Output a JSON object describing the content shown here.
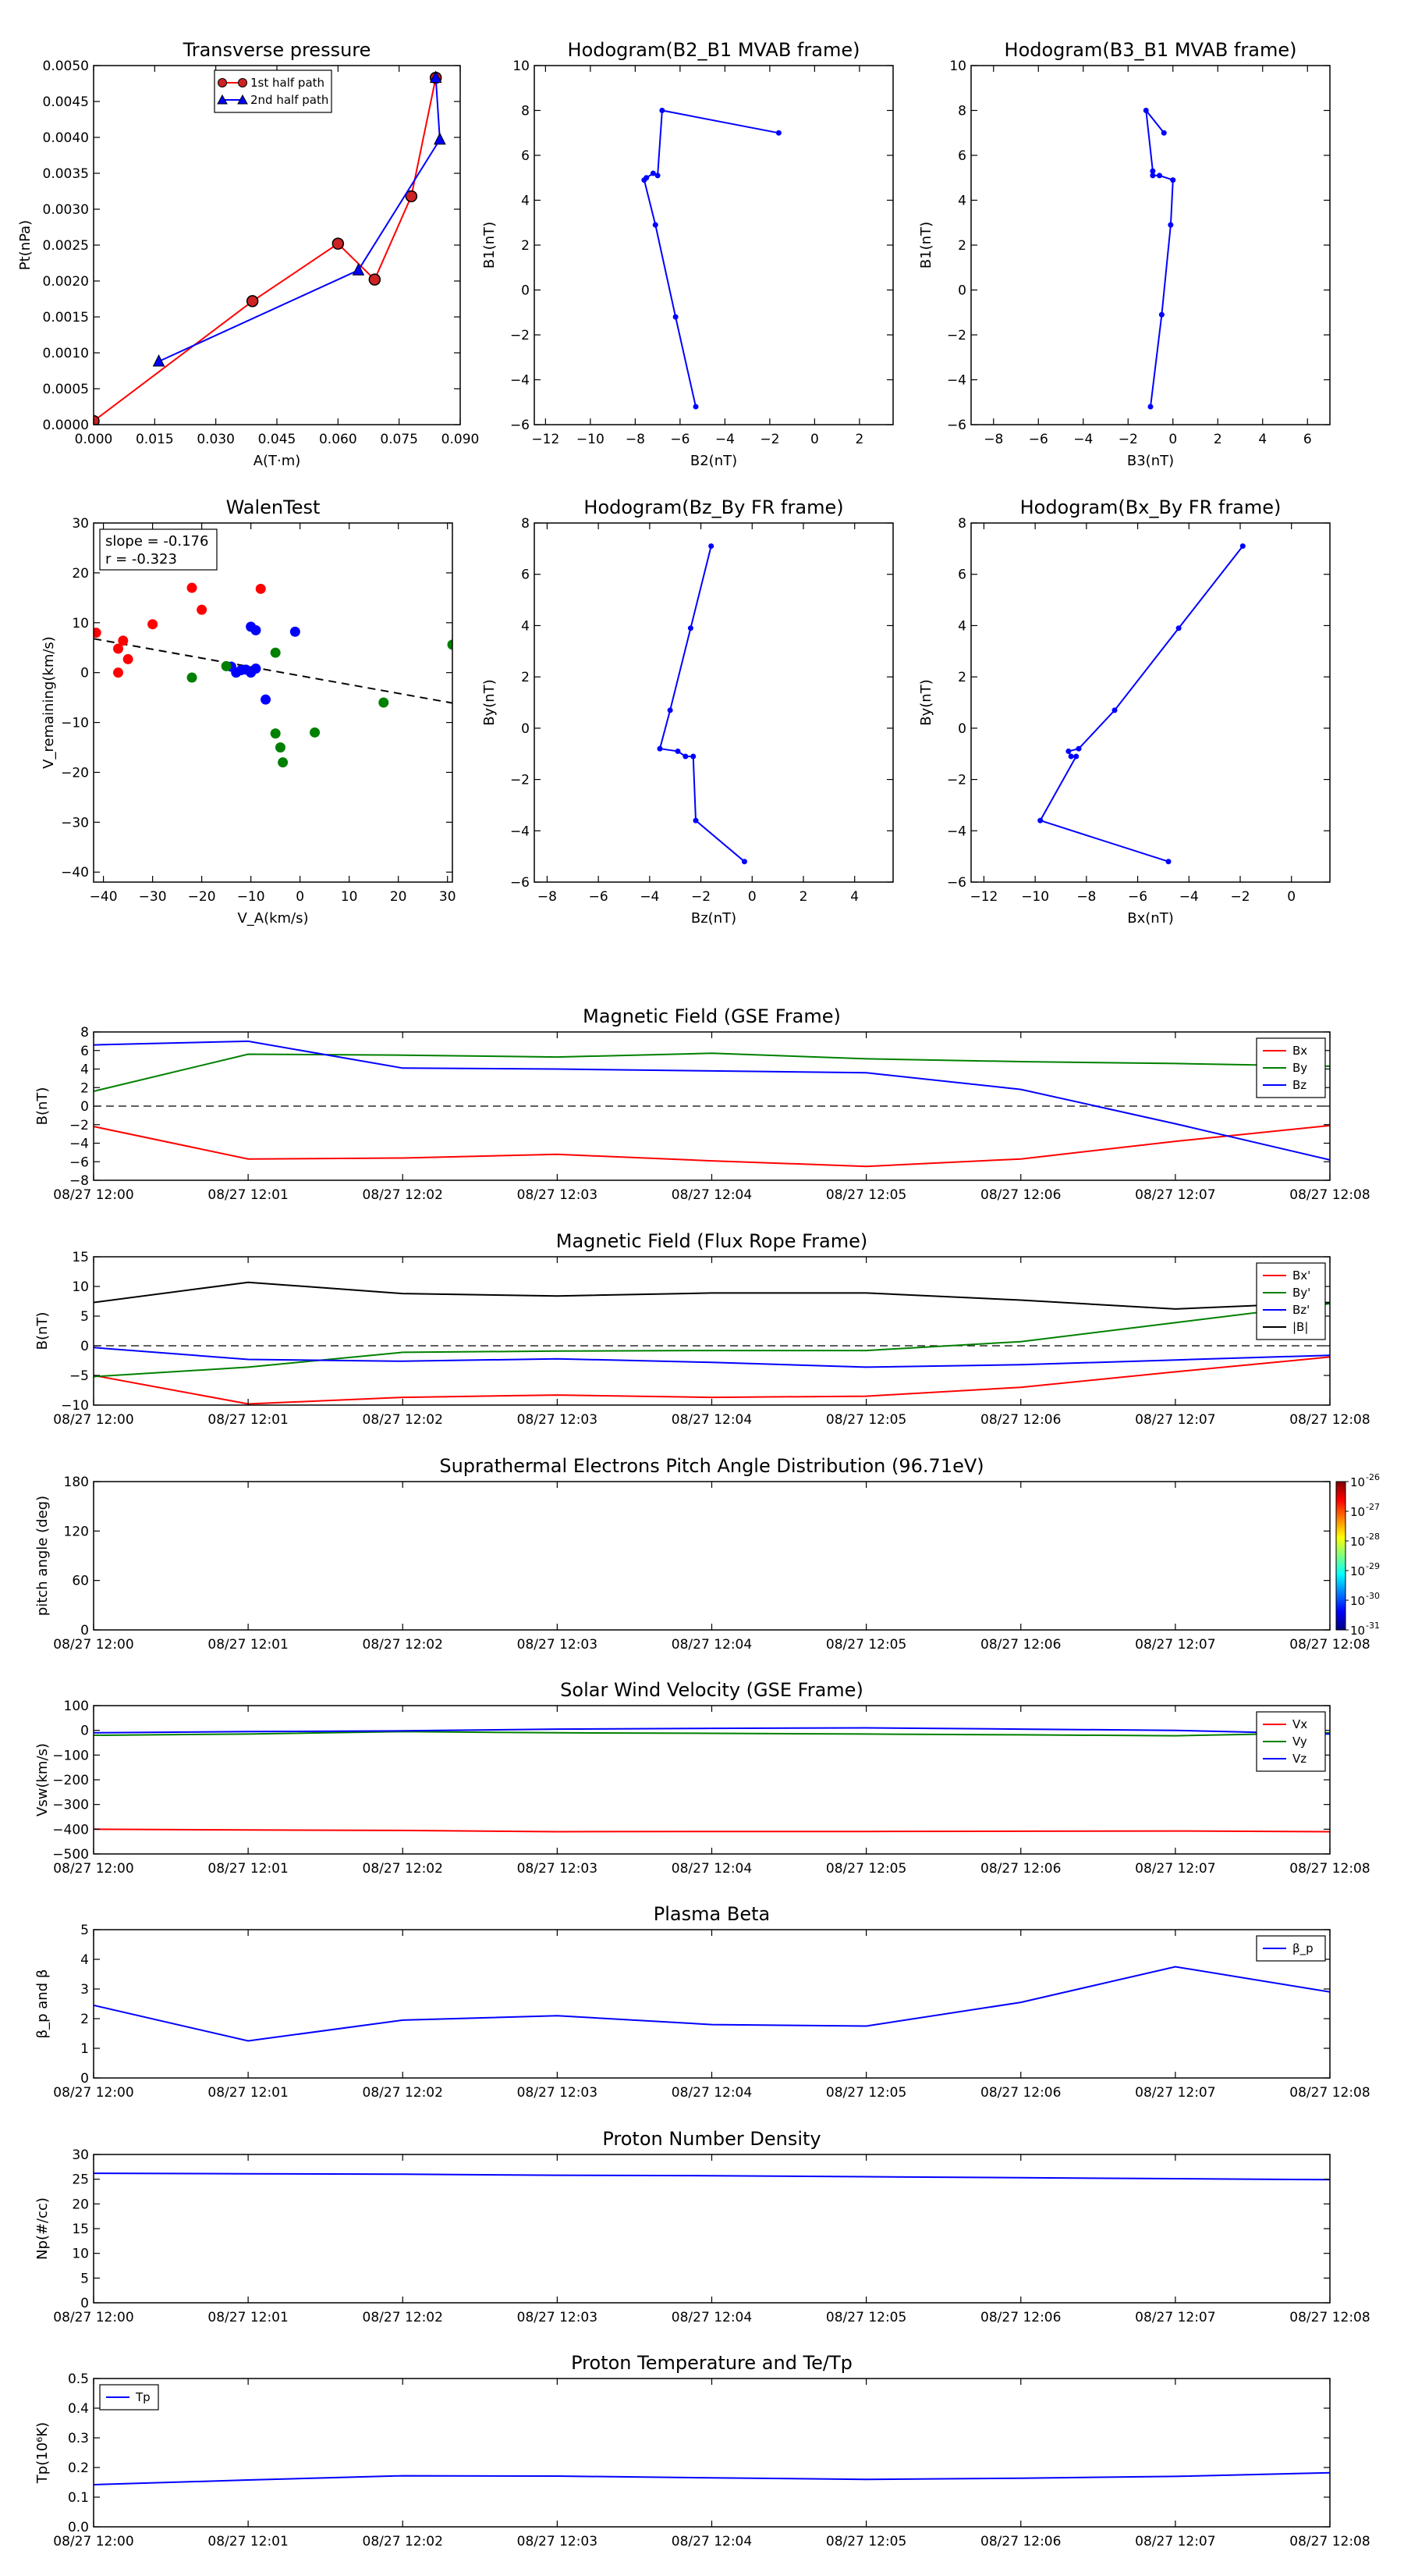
{
  "colors": {
    "red": "#ff0000",
    "green": "#008000",
    "blue": "#0000ff",
    "black": "#000000",
    "dark_red": "#990000"
  },
  "charts": [
    {
      "id": "transverse-pressure",
      "type": "line",
      "title": "Transverse pressure",
      "xlabel": "A(T·m)",
      "ylabel": "Pt(nPa)",
      "xlim": [
        0,
        0.09
      ],
      "ylim": [
        0,
        0.005
      ],
      "xticks": [
        0,
        0.015,
        0.03,
        0.045,
        0.06,
        0.075,
        0.09
      ],
      "xtick_labels": [
        "0.000",
        "0.015",
        "0.030",
        "0.045",
        "0.060",
        "0.075",
        "0.090"
      ],
      "yticks": [
        0,
        0.0005,
        0.001,
        0.0015,
        0.002,
        0.0025,
        0.003,
        0.0035,
        0.004,
        0.0045,
        0.005
      ],
      "ytick_labels": [
        "0.0000",
        "0.0005",
        "0.0010",
        "0.0015",
        "0.0020",
        "0.0025",
        "0.0030",
        "0.0035",
        "0.0040",
        "0.0045",
        "0.0050"
      ],
      "legend_position": "top-center",
      "series": [
        {
          "name": "1st half path",
          "color": "#ff0000",
          "marker": "circle",
          "x": [
            0.0,
            0.039,
            0.06,
            0.069,
            0.078,
            0.084
          ],
          "y": [
            5e-05,
            0.00172,
            0.00252,
            0.00202,
            0.00318,
            0.00483
          ]
        },
        {
          "name": "2nd half path",
          "color": "#0000ff",
          "marker": "triangle",
          "x": [
            0.084,
            0.085,
            0.065,
            0.016
          ],
          "y": [
            0.00483,
            0.00397,
            0.00215,
            0.00088
          ]
        }
      ]
    },
    {
      "id": "hodogram-b2-b1",
      "type": "line",
      "title": "Hodogram(B2_B1 MVAB frame)",
      "xlabel": "B2(nT)",
      "ylabel": "B1(nT)",
      "xlim": [
        -12.5,
        3.5
      ],
      "ylim": [
        -6,
        10
      ],
      "xticks": [
        -12,
        -10,
        -8,
        -6,
        -4,
        -2,
        0,
        2
      ],
      "xtick_labels": [
        "−12",
        "−10",
        "−8",
        "−6",
        "−4",
        "−2",
        "0",
        "2"
      ],
      "yticks": [
        -6,
        -4,
        -2,
        0,
        2,
        4,
        6,
        8,
        10
      ],
      "ytick_labels": [
        "−6",
        "−4",
        "−2",
        "0",
        "2",
        "4",
        "6",
        "8",
        "10"
      ],
      "series": [
        {
          "color": "#0000ff",
          "marker": "dot",
          "x": [
            -1.6,
            -6.8,
            -7.0,
            -7.2,
            -7.5,
            -7.6,
            -7.1,
            -6.2,
            -5.3
          ],
          "y": [
            7.0,
            8.0,
            5.1,
            5.2,
            5.0,
            4.9,
            2.9,
            -1.2,
            -5.2
          ]
        }
      ]
    },
    {
      "id": "hodogram-b3-b1",
      "type": "line",
      "title": "Hodogram(B3_B1 MVAB frame)",
      "xlabel": "B3(nT)",
      "ylabel": "B1(nT)",
      "xlim": [
        -9,
        7
      ],
      "ylim": [
        -6,
        10
      ],
      "xticks": [
        -8,
        -6,
        -4,
        -2,
        0,
        2,
        4,
        6
      ],
      "xtick_labels": [
        "−8",
        "−6",
        "−4",
        "−2",
        "0",
        "2",
        "4",
        "6"
      ],
      "yticks": [
        -6,
        -4,
        -2,
        0,
        2,
        4,
        6,
        8,
        10
      ],
      "ytick_labels": [
        "−6",
        "−4",
        "−2",
        "0",
        "2",
        "4",
        "6",
        "8",
        "10"
      ],
      "series": [
        {
          "color": "#0000ff",
          "marker": "dot",
          "x": [
            -0.4,
            -1.2,
            -0.9,
            -0.9,
            -0.6,
            0.0,
            -0.1,
            -0.5,
            -1.0
          ],
          "y": [
            7.0,
            8.0,
            5.3,
            5.1,
            5.1,
            4.9,
            2.9,
            -1.1,
            -5.2
          ]
        }
      ]
    },
    {
      "id": "walen-test",
      "type": "scatter",
      "title": "WalenTest",
      "xlabel": "V_A(km/s)",
      "ylabel": "V_remaining(km/s)",
      "xlim": [
        -42,
        31
      ],
      "ylim": [
        -42,
        30
      ],
      "xticks": [
        -40,
        -30,
        -20,
        -10,
        0,
        10,
        20,
        30
      ],
      "xtick_labels": [
        "−40",
        "−30",
        "−20",
        "−10",
        "0",
        "10",
        "20",
        "30"
      ],
      "yticks": [
        -40,
        -30,
        -20,
        -10,
        0,
        10,
        20,
        30
      ],
      "ytick_labels": [
        "−40",
        "−30",
        "−20",
        "−10",
        "0",
        "10",
        "20",
        "30"
      ],
      "annotation": {
        "slope": "slope = -0.176",
        "r": "r = -0.323"
      },
      "fit_line": {
        "x": [
          -42,
          31
        ],
        "y": [
          6.8,
          -6.1
        ]
      },
      "series": [
        {
          "color": "#ff0000",
          "x": [
            -41.5,
            -37,
            -36,
            -37,
            -35,
            -30,
            -22,
            -20,
            -8
          ],
          "y": [
            8,
            4.8,
            6.4,
            0,
            2.7,
            9.7,
            17,
            12.6,
            16.8
          ]
        },
        {
          "color": "#0000ff",
          "x": [
            -14,
            -13,
            -12,
            -11,
            -10,
            -9,
            -9,
            -10,
            -7,
            -1
          ],
          "y": [
            1.2,
            0,
            0.5,
            0.6,
            9.2,
            8.5,
            0.8,
            0,
            -5.4,
            8.2
          ]
        },
        {
          "color": "#008000",
          "x": [
            -22,
            -15,
            -5,
            -5,
            -4,
            -3.5,
            3,
            17,
            31
          ],
          "y": [
            -1,
            1.3,
            4,
            -12.2,
            -15,
            -18,
            -12,
            -6,
            5.6
          ]
        }
      ]
    },
    {
      "id": "hodogram-bz-by",
      "type": "line",
      "title": "Hodogram(Bz_By FR frame)",
      "xlabel": "Bz(nT)",
      "ylabel": "By(nT)",
      "xlim": [
        -8.5,
        5.5
      ],
      "ylim": [
        -6,
        8
      ],
      "xticks": [
        -8,
        -6,
        -4,
        -2,
        0,
        2,
        4
      ],
      "xtick_labels": [
        "−8",
        "−6",
        "−4",
        "−2",
        "0",
        "2",
        "4"
      ],
      "yticks": [
        -6,
        -4,
        -2,
        0,
        2,
        4,
        6,
        8
      ],
      "ytick_labels": [
        "−6",
        "−4",
        "−2",
        "0",
        "2",
        "4",
        "6",
        "8"
      ],
      "series": [
        {
          "color": "#0000ff",
          "marker": "dot",
          "x": [
            -1.6,
            -2.4,
            -3.2,
            -3.6,
            -2.9,
            -2.6,
            -2.3,
            -2.2,
            -0.3
          ],
          "y": [
            7.1,
            3.9,
            0.7,
            -0.8,
            -0.9,
            -1.1,
            -1.1,
            -3.6,
            -5.2
          ]
        }
      ]
    },
    {
      "id": "hodogram-bx-by",
      "type": "line",
      "title": "Hodogram(Bx_By FR frame)",
      "xlabel": "Bx(nT)",
      "ylabel": "By(nT)",
      "xlim": [
        -12.5,
        1.5
      ],
      "ylim": [
        -6,
        8
      ],
      "xticks": [
        -12,
        -10,
        -8,
        -6,
        -4,
        -2,
        0
      ],
      "xtick_labels": [
        "−12",
        "−10",
        "−8",
        "−6",
        "−4",
        "−2",
        "0"
      ],
      "yticks": [
        -6,
        -4,
        -2,
        0,
        2,
        4,
        6,
        8
      ],
      "ytick_labels": [
        "−6",
        "−4",
        "−2",
        "0",
        "2",
        "4",
        "6",
        "8"
      ],
      "series": [
        {
          "color": "#0000ff",
          "marker": "dot",
          "x": [
            -1.9,
            -4.4,
            -6.9,
            -8.3,
            -8.7,
            -8.6,
            -8.4,
            -9.8,
            -4.8
          ],
          "y": [
            7.1,
            3.9,
            0.7,
            -0.8,
            -0.9,
            -1.1,
            -1.1,
            -3.6,
            -5.2
          ]
        }
      ]
    },
    {
      "id": "magnetic-field-gse",
      "type": "line",
      "title": "Magnetic Field (GSE Frame)",
      "xlabel": "",
      "ylabel": "B(nT)",
      "ylim": [
        -8,
        8
      ],
      "yticks": [
        -8,
        -6,
        -4,
        -2,
        0,
        2,
        4,
        6,
        8
      ],
      "ytick_labels": [
        "−8",
        "−6",
        "−4",
        "−2",
        "0",
        "2",
        "4",
        "6",
        "8"
      ],
      "zero_line": true,
      "legend_position": "top-right",
      "series": [
        {
          "name": "Bx",
          "color": "#ff0000",
          "values": [
            -2.2,
            -5.7,
            -5.6,
            -5.2,
            -5.9,
            -6.5,
            -5.7,
            -3.8,
            -2.1
          ]
        },
        {
          "name": "By",
          "color": "#008000",
          "values": [
            1.6,
            5.6,
            5.5,
            5.3,
            5.7,
            5.1,
            4.8,
            4.6,
            4.3
          ]
        },
        {
          "name": "Bz",
          "color": "#0000ff",
          "values": [
            6.6,
            7.0,
            4.1,
            4.0,
            3.8,
            3.6,
            1.8,
            -1.9,
            -5.8
          ]
        }
      ]
    },
    {
      "id": "magnetic-field-flux-rope",
      "type": "line",
      "title": "Magnetic Field (Flux Rope Frame)",
      "xlabel": "",
      "ylabel": "B(nT)",
      "ylim": [
        -10,
        15
      ],
      "yticks": [
        -10,
        -5,
        0,
        5,
        10,
        15
      ],
      "ytick_labels": [
        "−10",
        "−5",
        "0",
        "5",
        "10",
        "15"
      ],
      "zero_line": true,
      "legend_position": "top-right",
      "series": [
        {
          "name": "Bx'",
          "color": "#ff0000",
          "values": [
            -5.0,
            -9.8,
            -8.7,
            -8.3,
            -8.7,
            -8.5,
            -7.0,
            -4.4,
            -1.9
          ]
        },
        {
          "name": "By'",
          "color": "#008000",
          "values": [
            -5.2,
            -3.6,
            -1.1,
            -0.9,
            -0.8,
            -0.8,
            0.7,
            3.9,
            7.1
          ]
        },
        {
          "name": "Bz'",
          "color": "#0000ff",
          "values": [
            -0.3,
            -2.3,
            -2.6,
            -2.2,
            -2.8,
            -3.6,
            -3.2,
            -2.4,
            -1.6
          ]
        },
        {
          "name": "|B|",
          "color": "#000000",
          "values": [
            7.3,
            10.7,
            8.8,
            8.4,
            8.9,
            8.9,
            7.7,
            6.2,
            7.3
          ]
        }
      ]
    },
    {
      "id": "pitch-angle-distribution",
      "type": "heatmap",
      "title": "Suprathermal Electrons Pitch Angle Distribution (96.71eV)",
      "xlabel": "",
      "ylabel": "pitch angle (deg)",
      "ylim": [
        0,
        180
      ],
      "yticks": [
        0,
        60,
        120,
        180
      ],
      "ytick_labels": [
        "0",
        "60",
        "120",
        "180"
      ],
      "colorbar": {
        "labels": [
          "10",
          "10",
          "10",
          "10",
          "10",
          "10"
        ],
        "exponents": [
          "-26",
          "-27",
          "-28",
          "-29",
          "-30",
          "-31"
        ],
        "stops": [
          "#800000",
          "#ff0000",
          "#ff8000",
          "#ffff00",
          "#80ff80",
          "#00ffff",
          "#0080ff",
          "#0000ff",
          "#000080"
        ]
      }
    },
    {
      "id": "solar-wind-velocity",
      "type": "line",
      "title": "Solar Wind Velocity (GSE Frame)",
      "xlabel": "",
      "ylabel": "Vsw(km/s)",
      "ylim": [
        -500,
        100
      ],
      "yticks": [
        -500,
        -400,
        -300,
        -200,
        -100,
        0,
        100
      ],
      "ytick_labels": [
        "−500",
        "−400",
        "−300",
        "−200",
        "−100",
        "0",
        "100"
      ],
      "legend_position": "top-right",
      "series": [
        {
          "name": "Vx",
          "color": "#ff0000",
          "values": [
            -400,
            -403,
            -405,
            -410,
            -409,
            -409,
            -408,
            -407,
            -410
          ]
        },
        {
          "name": "Vy",
          "color": "#008000",
          "values": [
            -20,
            -15,
            -5,
            -10,
            -12,
            -15,
            -18,
            -22,
            -10
          ]
        },
        {
          "name": "Vz",
          "color": "#0000ff",
          "values": [
            -10,
            -5,
            -2,
            5,
            8,
            10,
            5,
            0,
            -15
          ]
        }
      ]
    },
    {
      "id": "plasma-beta",
      "type": "line",
      "title": "Plasma Beta",
      "xlabel": "",
      "ylabel": "β_p and β",
      "ylim": [
        0,
        5
      ],
      "yticks": [
        0,
        1,
        2,
        3,
        4,
        5
      ],
      "ytick_labels": [
        "0",
        "1",
        "2",
        "3",
        "4",
        "5"
      ],
      "legend_position": "top-right",
      "series": [
        {
          "name": "β_p",
          "color": "#0000ff",
          "values": [
            2.45,
            1.25,
            1.95,
            2.1,
            1.8,
            1.75,
            2.55,
            3.75,
            2.9
          ]
        }
      ]
    },
    {
      "id": "proton-number-density",
      "type": "line",
      "title": "Proton Number Density",
      "xlabel": "",
      "ylabel": "Np(#/cc)",
      "ylim": [
        0,
        30
      ],
      "yticks": [
        0,
        5,
        10,
        15,
        20,
        25,
        30
      ],
      "ytick_labels": [
        "0",
        "5",
        "10",
        "15",
        "20",
        "25",
        "30"
      ],
      "series": [
        {
          "color": "#0000ff",
          "values": [
            26.2,
            26.1,
            26.0,
            25.8,
            25.7,
            25.5,
            25.3,
            25.1,
            24.9
          ]
        }
      ]
    },
    {
      "id": "proton-temperature",
      "type": "line",
      "title": "Proton Temperature and Te/Tp",
      "xlabel": "",
      "ylabel": "Tp(10⁶K)",
      "ylim": [
        0,
        0.5
      ],
      "yticks": [
        0,
        0.1,
        0.2,
        0.3,
        0.4,
        0.5
      ],
      "ytick_labels": [
        "0.0",
        "0.1",
        "0.2",
        "0.3",
        "0.4",
        "0.5"
      ],
      "legend_position": "top-left",
      "series": [
        {
          "name": "Tp",
          "color": "#0000ff",
          "values": [
            0.142,
            0.158,
            0.172,
            0.171,
            0.165,
            0.16,
            0.164,
            0.17,
            0.182
          ]
        }
      ]
    }
  ],
  "time_axis": {
    "labels": [
      "08/27 12:00",
      "08/27 12:01",
      "08/27 12:02",
      "08/27 12:03",
      "08/27 12:04",
      "08/27 12:05",
      "08/27 12:06",
      "08/27 12:07",
      "08/27 12:08"
    ]
  }
}
